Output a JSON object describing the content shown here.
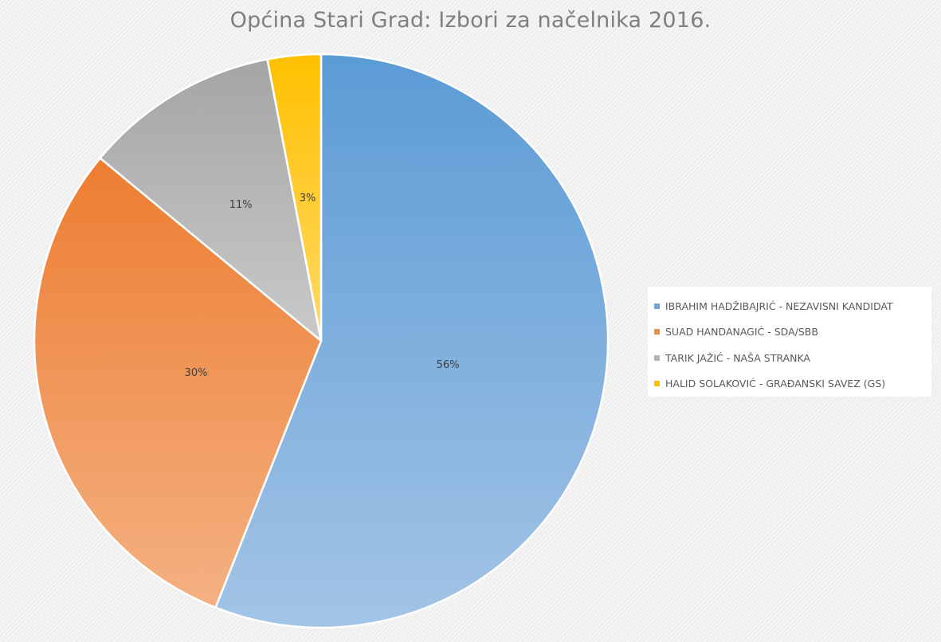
{
  "chart_data": {
    "type": "pie",
    "title": "Općina Stari Grad: Izbori za načelnika 2016.",
    "slices": [
      {
        "name": "IBRAHIM HADŽIBAJRIĆ - NEZAVISNI KANDIDAT",
        "value": 56,
        "label": "56%",
        "color": "#6fa6d9",
        "color_light": "#a3c4e6",
        "color_dark": "#5b9bd5"
      },
      {
        "name": "SUAD HANDANAGIĆ - SDA/SBB",
        "value": 30,
        "label": "30%",
        "color": "#f08e4f",
        "color_light": "#f4b183",
        "color_dark": "#ed7d31"
      },
      {
        "name": "TARIK JAŽIĆ - NAŠA STRANKA",
        "value": 11,
        "label": "11%",
        "color": "#b3b3b3",
        "color_light": "#c9c9c9",
        "color_dark": "#a5a5a5"
      },
      {
        "name": "HALID SOLAKOVIĆ - GRAĐANSKI SAVEZ (GS)",
        "value": 3,
        "label": "3%",
        "color": "#ffc000",
        "color_light": "#ffd966",
        "color_dark": "#ffc000"
      }
    ],
    "start_angle": "12 o'clock",
    "direction": "clockwise",
    "legend_position": "right"
  }
}
